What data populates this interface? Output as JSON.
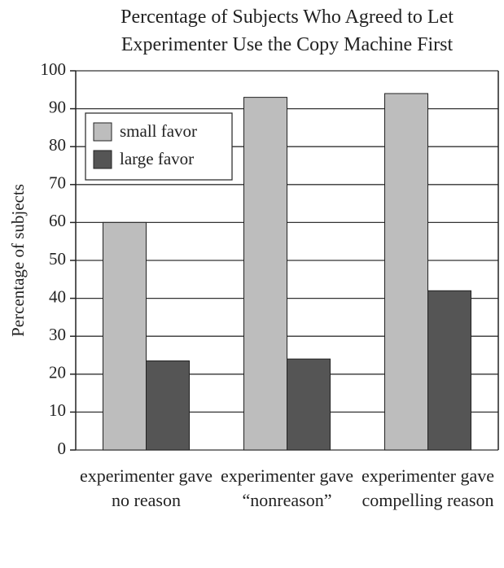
{
  "chart_data": {
    "type": "bar",
    "title": "Percentage of Subjects Who Agreed to Let Experimenter Use the Copy Machine First",
    "y_label": "Percentage of subjects",
    "categories": [
      "experimenter gave no reason",
      "experimenter gave “nonreason”",
      "experimenter gave compelling reason"
    ],
    "series": [
      {
        "name": "small favor",
        "color": "#bdbdbd",
        "values": [
          60,
          93,
          94
        ]
      },
      {
        "name": "large favor",
        "color": "#555555",
        "values": [
          23.5,
          24,
          42
        ]
      }
    ],
    "ylim": [
      0,
      100
    ],
    "yticks": [
      0,
      10,
      20,
      30,
      40,
      50,
      60,
      70,
      80,
      90,
      100
    ],
    "grid": true,
    "legend": "upper left"
  }
}
